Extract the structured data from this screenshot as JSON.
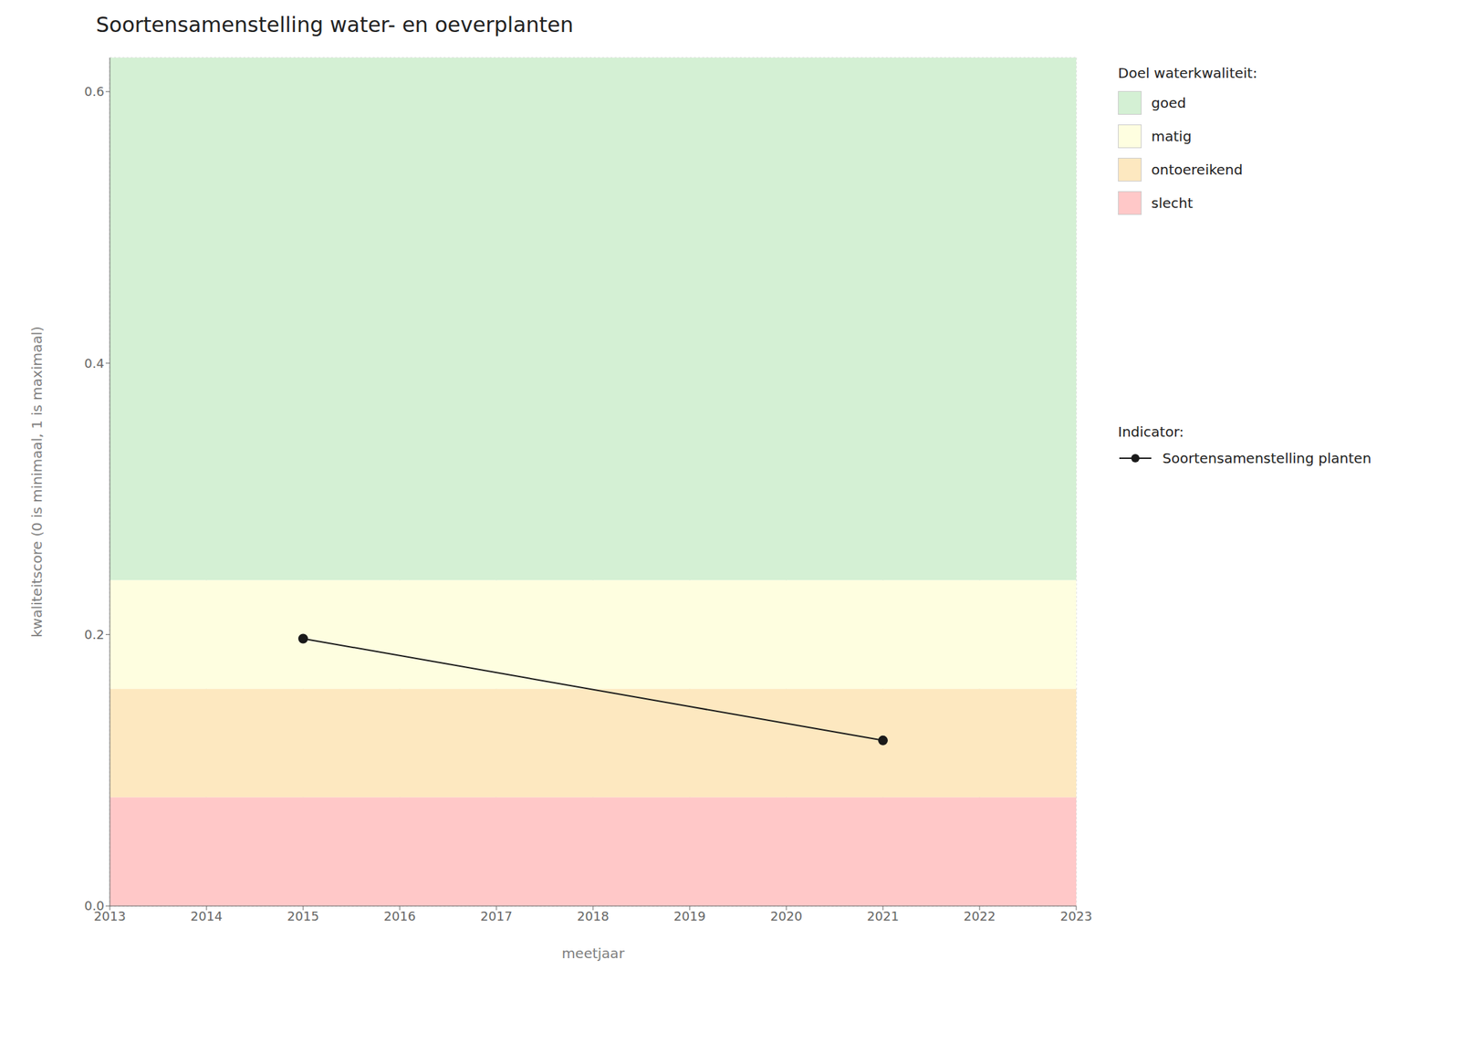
{
  "chart_data": {
    "type": "line",
    "title": "Soortensamenstelling water- en oeverplanten",
    "xlabel": "meetjaar",
    "ylabel": "kwaliteitscore (0 is minimaal, 1 is maximaal)",
    "x": [
      2015,
      2021
    ],
    "series": [
      {
        "name": "Soortensamenstelling planten",
        "color": "#1a1a1a",
        "marker": "circle",
        "values": [
          0.197,
          0.122
        ]
      }
    ],
    "xlim": [
      2013,
      2023
    ],
    "xticks": [
      2013,
      2014,
      2015,
      2016,
      2017,
      2018,
      2019,
      2020,
      2021,
      2022,
      2023
    ],
    "ylim": [
      0,
      0.625
    ],
    "yticks": [
      {
        "value": 0,
        "label": "0.0"
      },
      0.2,
      0.4,
      0.6
    ],
    "grid": true,
    "zones_title": "Doel waterkwaliteit:",
    "zones": [
      {
        "label": "goed",
        "color": "#d4f0d4",
        "ymin": 0.24,
        "ymax": 0.625
      },
      {
        "label": "matig",
        "color": "#fefee0",
        "ymin": 0.16,
        "ymax": 0.24
      },
      {
        "label": "ontoereikend",
        "color": "#fde8c0",
        "ymin": 0.08,
        "ymax": 0.16
      },
      {
        "label": "slecht",
        "color": "#ffc8c8",
        "ymin": 0.0,
        "ymax": 0.08
      }
    ],
    "series_title": "Indicator:"
  }
}
